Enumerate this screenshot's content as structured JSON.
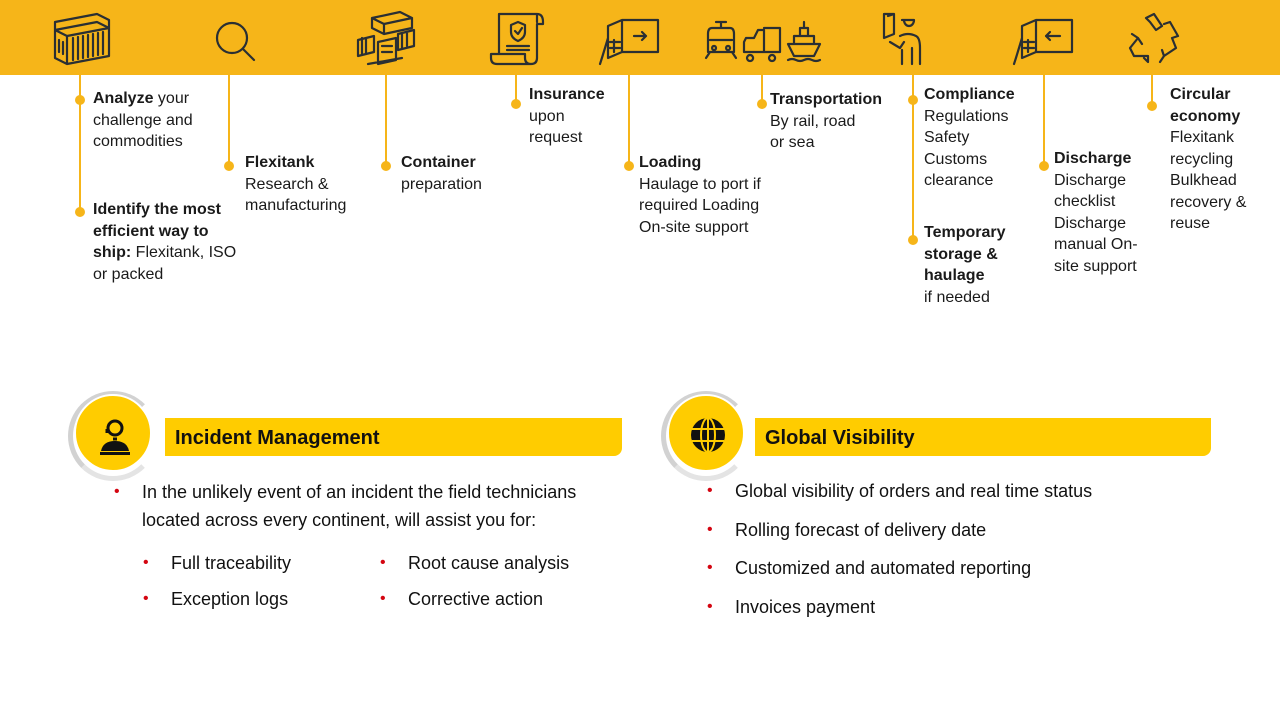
{
  "colors": {
    "banner": "#F6B519",
    "card_header": "#FFCC00",
    "bullet": "#D40511"
  },
  "steps": [
    {
      "icon": "shipping-container-icon",
      "items": [
        {
          "bold": "Analyze",
          "text": " your challenge and commodities"
        },
        {
          "bold": "Identify the most efficient way to ship:",
          "text": " Flexitank, ISO or packed"
        }
      ]
    },
    {
      "icon": "magnifier-icon",
      "items": [
        {
          "bold": "Flexitank",
          "text": "Research & manufacturing"
        }
      ]
    },
    {
      "icon": "container-preparation-icon",
      "items": [
        {
          "bold": "Container",
          "text": "preparation"
        }
      ]
    },
    {
      "icon": "insurance-document-icon",
      "items": [
        {
          "bold": "Insurance",
          "text": "upon request"
        }
      ]
    },
    {
      "icon": "container-loading-icon",
      "items": [
        {
          "bold": "Loading",
          "text": "Haulage to port if required Loading On-site support"
        }
      ]
    },
    {
      "icon": "train-truck-ship-icon",
      "items": [
        {
          "bold": "Transportation",
          "text": "By rail, road or sea"
        }
      ]
    },
    {
      "icon": "customs-officer-icon",
      "items": [
        {
          "bold": "Compliance",
          "text": "Regulations Safety Customs clearance"
        },
        {
          "bold": "Temporary storage & haulage",
          "text": "if needed"
        }
      ]
    },
    {
      "icon": "container-discharge-icon",
      "items": [
        {
          "bold": "Discharge",
          "text": "Discharge checklist Discharge manual On-site support"
        }
      ]
    },
    {
      "icon": "recycle-icon",
      "items": [
        {
          "bold": "Circular economy",
          "text": "Flexitank recycling Bulkhead recovery & reuse"
        }
      ]
    }
  ],
  "incident": {
    "icon": "headset-agent-icon",
    "title": "Incident Management",
    "intro": "In the unlikely event of an incident the field technicians located across every continent, will assist you for:",
    "bullets": [
      "Full traceability",
      "Root cause analysis",
      "Exception logs",
      "Corrective action"
    ]
  },
  "visibility": {
    "icon": "globe-icon",
    "title": "Global Visibility",
    "bullets": [
      "Global visibility of orders and real time status",
      "Rolling forecast of delivery date",
      "Customized and automated reporting",
      "Invoices payment"
    ]
  }
}
